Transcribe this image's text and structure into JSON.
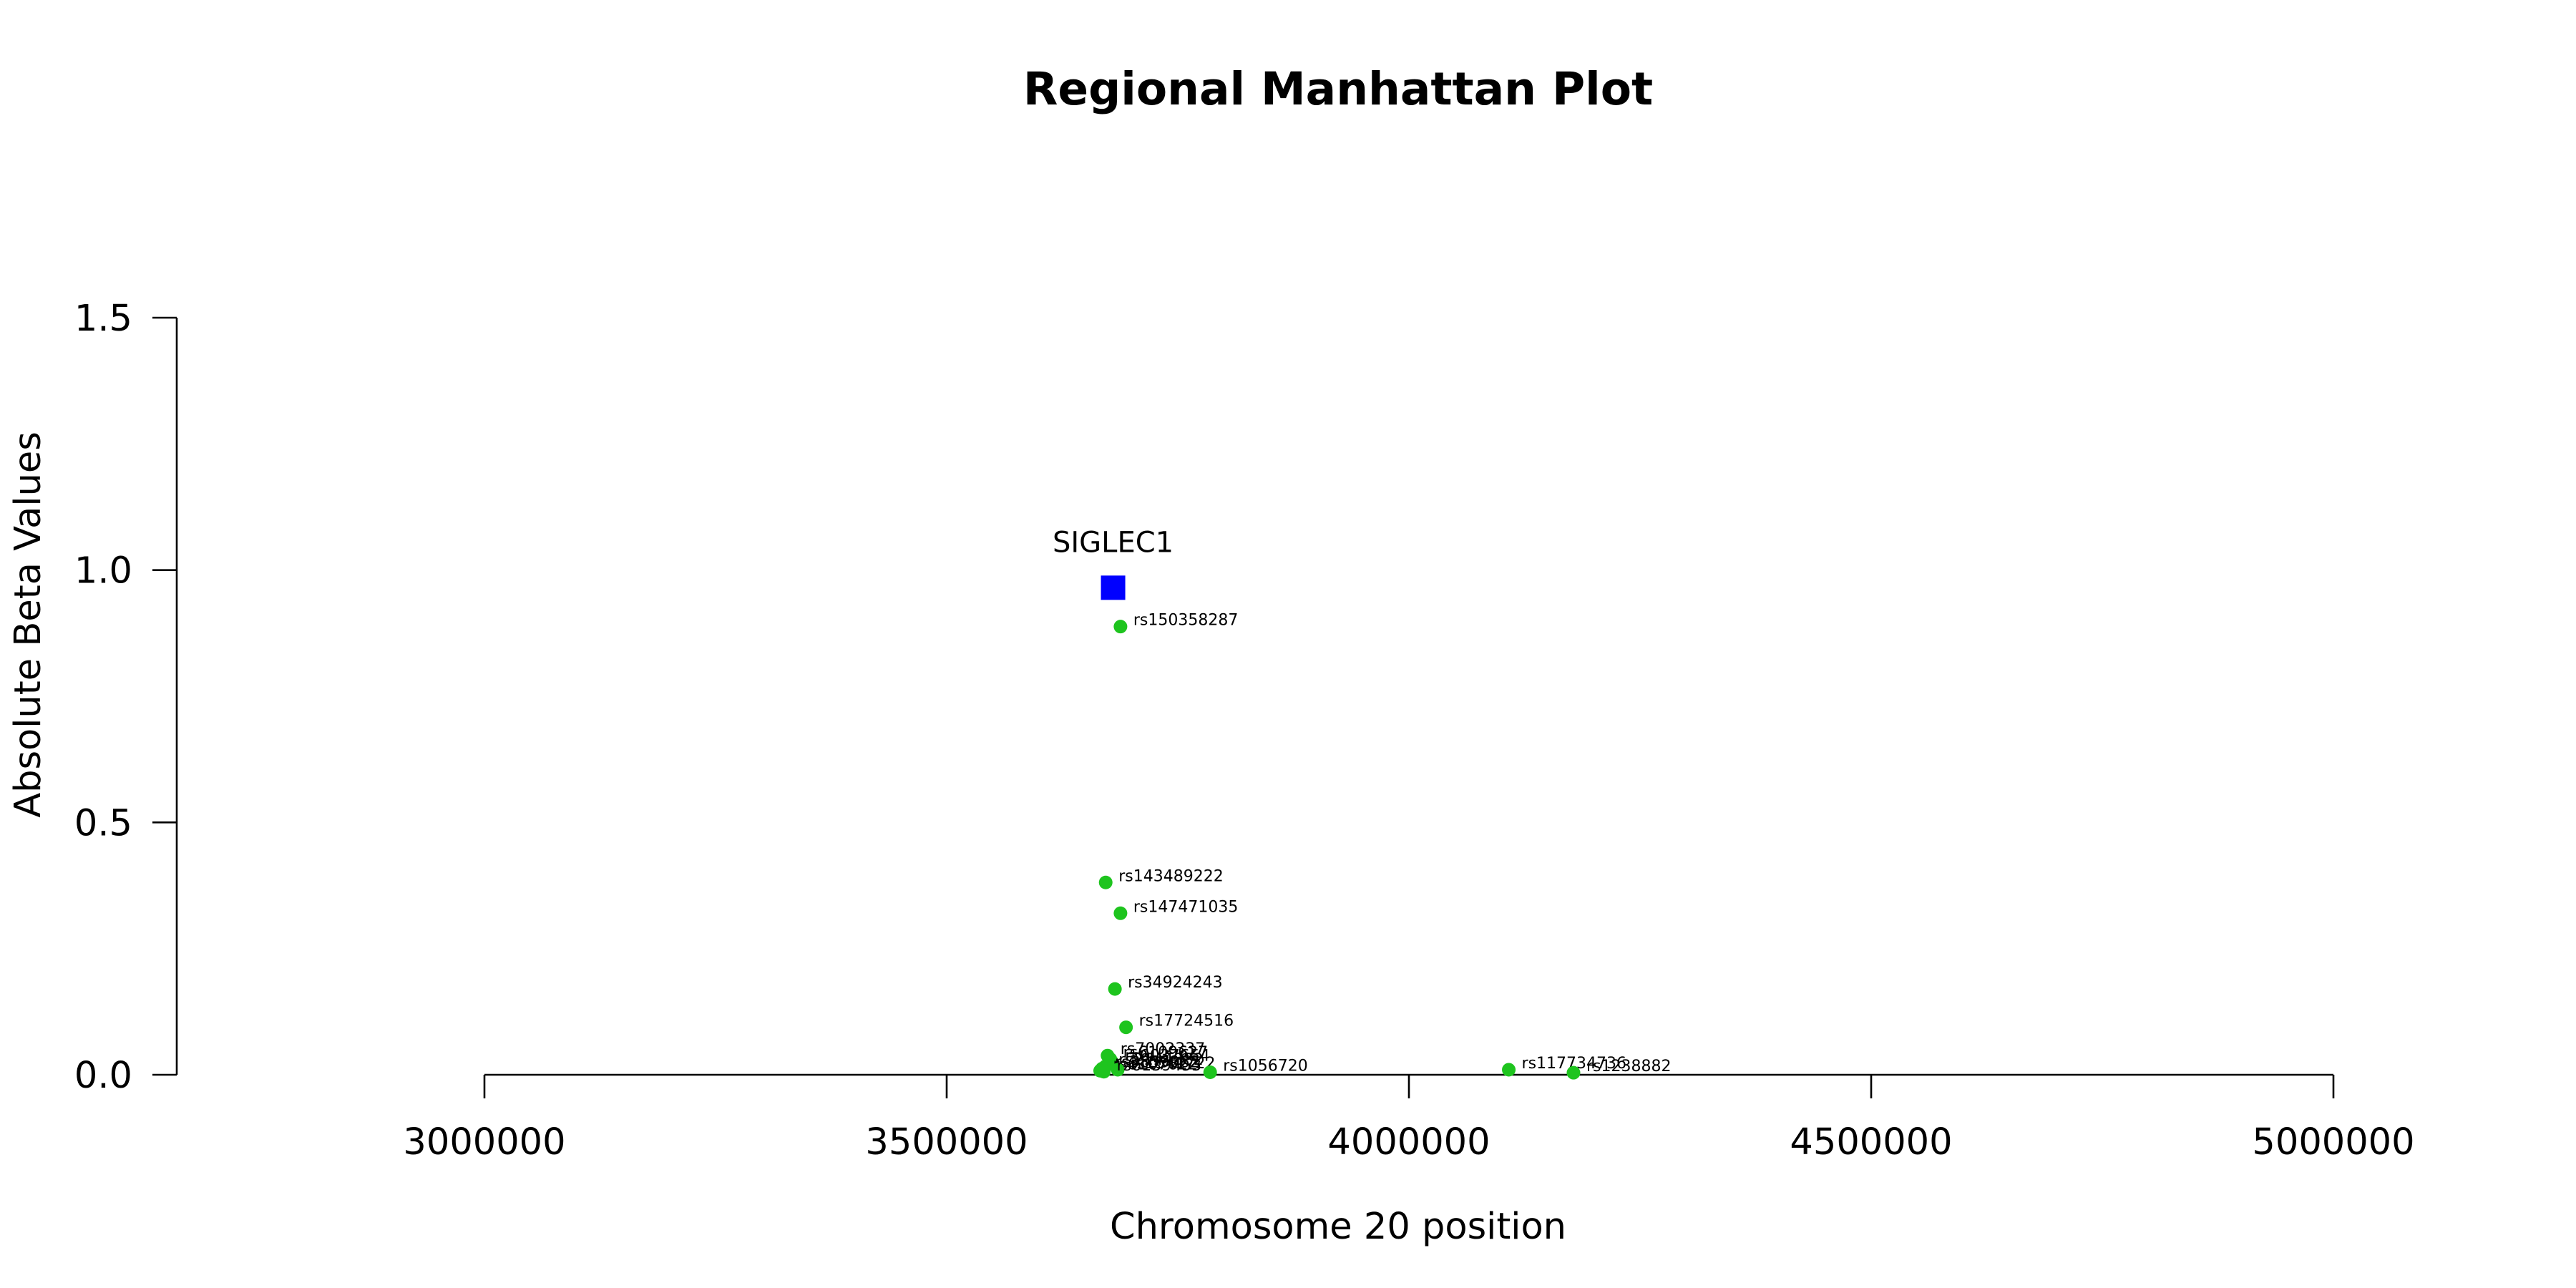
{
  "chart_data": {
    "type": "scatter",
    "title": "Regional Manhattan Plot",
    "xlabel": "Chromosome 20 position",
    "ylabel": "Absolute Beta Values",
    "xlim": [
      3000000,
      5000000
    ],
    "ylim": [
      0,
      1.5
    ],
    "x_ticks": [
      "3000000",
      "3500000",
      "4000000",
      "4500000",
      "5000000"
    ],
    "y_ticks": [
      "0.0",
      "0.5",
      "1.0",
      "1.5"
    ],
    "grid": false,
    "colors": {
      "snp": "#1ec41e",
      "gene": "#0000ff"
    },
    "gene": {
      "label": "SIGLEC1",
      "x": 3680000,
      "y": 0.965
    },
    "snps": [
      {
        "label": "rs150358287",
        "x": 3688000,
        "y": 0.888
      },
      {
        "label": "rs143489222",
        "x": 3672000,
        "y": 0.381
      },
      {
        "label": "rs147471035",
        "x": 3688000,
        "y": 0.32
      },
      {
        "label": "rs34924243",
        "x": 3682000,
        "y": 0.17
      },
      {
        "label": "rs17724516",
        "x": 3694000,
        "y": 0.094
      },
      {
        "label": "rs7002337",
        "x": 3674000,
        "y": 0.038
      },
      {
        "label": "rs6109627",
        "x": 3677000,
        "y": 0.031
      },
      {
        "label": "rs6037654",
        "x": 3679000,
        "y": 0.025
      },
      {
        "label": "rs2144882",
        "x": 3672000,
        "y": 0.017
      },
      {
        "label": "rs3859962",
        "x": 3668000,
        "y": 0.012
      },
      {
        "label": "rs6107622",
        "x": 3666000,
        "y": 0.008
      },
      {
        "label": "rs1541722",
        "x": 3685000,
        "y": 0.01
      },
      {
        "label": "rs6139453",
        "x": 3670000,
        "y": 0.006
      },
      {
        "label": "rs1056720",
        "x": 3785000,
        "y": 0.005
      },
      {
        "label": "rs117734736",
        "x": 4108000,
        "y": 0.01
      },
      {
        "label": "rs1238882",
        "x": 4178000,
        "y": 0.004
      }
    ]
  }
}
